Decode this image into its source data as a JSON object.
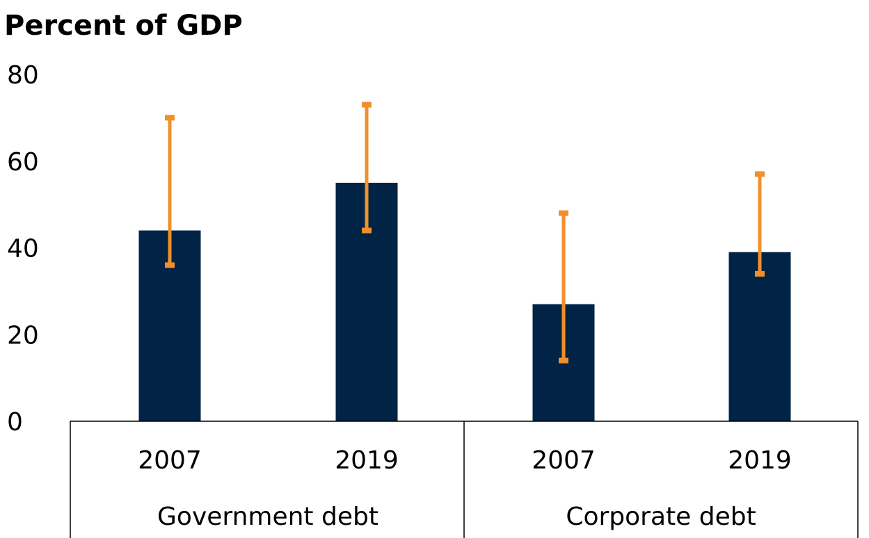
{
  "chart_data": {
    "type": "bar",
    "title": "Percent of GDP",
    "ylim": [
      0,
      80
    ],
    "yticks": [
      "0",
      "20",
      "40",
      "60",
      "80"
    ],
    "ytick_values": [
      0,
      20,
      40,
      60,
      80
    ],
    "groups": [
      "Government debt",
      "Corporate debt"
    ],
    "categories": [
      "2007",
      "2019",
      "2007",
      "2019"
    ],
    "group_index": [
      0,
      0,
      1,
      1
    ],
    "values": [
      44,
      55,
      27,
      39
    ],
    "error_low": [
      36,
      44,
      14,
      34
    ],
    "error_high": [
      70,
      73,
      48,
      57
    ],
    "colors": {
      "bar": "#012345",
      "error": "#f0902c",
      "axis": "#000000"
    }
  }
}
